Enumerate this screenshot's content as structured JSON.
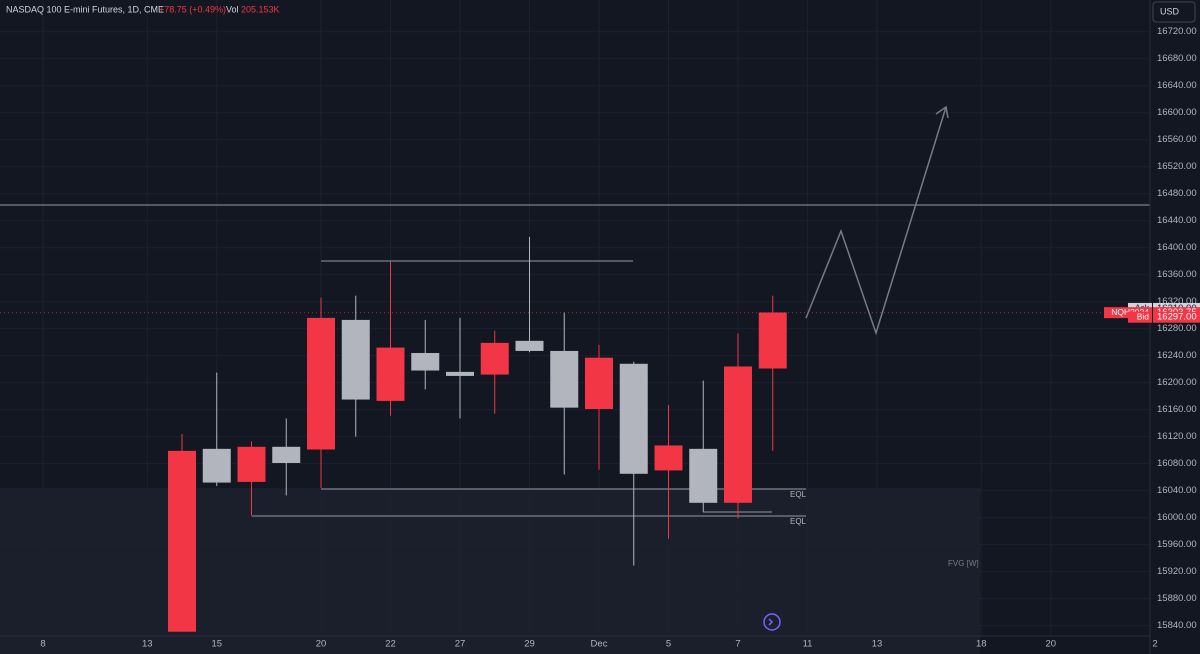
{
  "chart_data": {
    "type": "candlestick",
    "title": "NASDAQ 100 E-mini Futures, 1D, CME",
    "change": "+78.75 (+0.49%)",
    "volume_label": "Vol",
    "volume": "205.153K",
    "currency": "USD",
    "up_color": "#f23645",
    "down_color": "#b2b5be",
    "candles": {
      "open": [
        15831,
        16102,
        16053,
        16105,
        16101,
        16293,
        16173,
        16244,
        16216,
        16212,
        16262,
        16247,
        16161,
        16228,
        16070,
        16102,
        16022,
        16221
      ],
      "high": [
        16124,
        16215,
        16113,
        16147,
        16326,
        16329,
        16379,
        16293,
        16296,
        16277,
        16416,
        16304,
        16256,
        16231,
        16167,
        16203,
        16273,
        16329
      ],
      "low": [
        15831,
        16047,
        16003,
        16033,
        16044,
        16120,
        16151,
        16190,
        16147,
        16154,
        16245,
        16064,
        16071,
        15929,
        15969,
        16009,
        15999,
        16099
      ],
      "close": [
        16099,
        16052,
        16105,
        16081,
        16296,
        16175,
        16252,
        16218,
        16210,
        16259,
        16247,
        16163,
        16237,
        16065,
        16107,
        16022,
        16224,
        16304
      ]
    },
    "xticks": [
      "8",
      "13",
      "15",
      "20",
      "22",
      "27",
      "29",
      "Dec",
      "5",
      "7",
      "11",
      "13",
      "18",
      "20",
      "2"
    ],
    "ylim": [
      15798,
      16767
    ],
    "yticks": [
      {
        "value": 16720,
        "label": "16720.00"
      },
      {
        "value": 16680,
        "label": "16680.00"
      },
      {
        "value": 16640,
        "label": "16640.00"
      },
      {
        "value": 16600,
        "label": "16600.00"
      },
      {
        "value": 16560,
        "label": "16560.00"
      },
      {
        "value": 16520,
        "label": "16520.00"
      },
      {
        "value": 16480,
        "label": "16480.00"
      },
      {
        "value": 16440,
        "label": "16440.00"
      },
      {
        "value": 16400,
        "label": "16400.00"
      },
      {
        "value": 16360,
        "label": "16360.00"
      },
      {
        "value": 16320,
        "label": "16320.00"
      },
      {
        "value": 16280,
        "label": "16280.00"
      },
      {
        "value": 16240,
        "label": "16240.00"
      },
      {
        "value": 16200,
        "label": "16200.00"
      },
      {
        "value": 16160,
        "label": "16160.00"
      },
      {
        "value": 16120,
        "label": "16120.00"
      },
      {
        "value": 16080,
        "label": "16080.00"
      },
      {
        "value": 16040,
        "label": "16040.00"
      },
      {
        "value": 16000,
        "label": "16000.00"
      },
      {
        "value": 15960,
        "label": "15960.00"
      },
      {
        "value": 15920,
        "label": "15920.00"
      },
      {
        "value": 15880,
        "label": "15880.00"
      },
      {
        "value": 15840,
        "label": "15840.00"
      }
    ],
    "grid": true,
    "price_labels": [
      {
        "name": "Ask",
        "value": 16310,
        "label": "16310.00",
        "color": "#d1d4dc"
      },
      {
        "name": "NQH2024",
        "value": 16303.75,
        "label": "16303.75",
        "color": "#f23645"
      },
      {
        "name": "Bid",
        "value": 16297,
        "label": "16297.00",
        "color": "#f23645"
      }
    ],
    "annotations": [
      "EQL",
      "EQL",
      "FVG [W]"
    ]
  }
}
